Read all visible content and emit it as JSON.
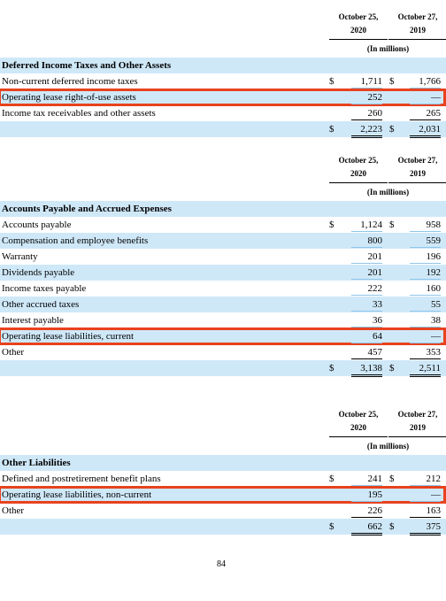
{
  "sections": [
    {
      "col1": {
        "line1": "October 25,",
        "line2": "2020"
      },
      "col2": {
        "line1": "October 27,",
        "line2": "2019"
      },
      "units": "(In millions)",
      "title": "Deferred Income Taxes and Other Assets",
      "rows": [
        {
          "label": "Non-current deferred income taxes",
          "cur1": "$",
          "v1": "1,711",
          "cur2": "$",
          "v2": "1,766"
        },
        {
          "label": "Operating lease right-of-use assets",
          "v1": "252",
          "v2": "—",
          "highlight": true
        },
        {
          "label": "Income tax receivables and other assets",
          "v1": "260",
          "v2": "265"
        }
      ],
      "total": {
        "cur1": "$",
        "v1": "2,223",
        "cur2": "$",
        "v2": "2,031"
      }
    },
    {
      "col1": {
        "line1": "October 25,",
        "line2": "2020"
      },
      "col2": {
        "line1": "October 27,",
        "line2": "2019"
      },
      "units": "(In millions)",
      "title": "Accounts Payable and Accrued Expenses",
      "rows": [
        {
          "label": "Accounts payable",
          "cur1": "$",
          "v1": "1,124",
          "cur2": "$",
          "v2": "958"
        },
        {
          "label": "Compensation and employee benefits",
          "v1": "800",
          "v2": "559"
        },
        {
          "label": "Warranty",
          "v1": "201",
          "v2": "196"
        },
        {
          "label": "Dividends payable",
          "v1": "201",
          "v2": "192"
        },
        {
          "label": "Income taxes payable",
          "v1": "222",
          "v2": "160"
        },
        {
          "label": "Other accrued taxes",
          "v1": "33",
          "v2": "55"
        },
        {
          "label": "Interest payable",
          "v1": "36",
          "v2": "38"
        },
        {
          "label": "Operating lease liabilities, current",
          "v1": "64",
          "v2": "—",
          "highlight": true
        },
        {
          "label": "Other",
          "v1": "457",
          "v2": "353"
        }
      ],
      "total": {
        "cur1": "$",
        "v1": "3,138",
        "cur2": "$",
        "v2": "2,511"
      }
    },
    {
      "col1": {
        "line1": "October 25,",
        "line2": "2020"
      },
      "col2": {
        "line1": "October 27,",
        "line2": "2019"
      },
      "units": "(In millions)",
      "title": "Other Liabilities",
      "rows": [
        {
          "label": "Defined and postretirement benefit plans",
          "cur1": "$",
          "v1": "241",
          "cur2": "$",
          "v2": "212"
        },
        {
          "label": "Operating lease liabilities, non-current",
          "v1": "195",
          "v2": "—",
          "highlight": true
        },
        {
          "label": "Other",
          "v1": "226",
          "v2": "163"
        }
      ],
      "total": {
        "cur1": "$",
        "v1": "662",
        "cur2": "$",
        "v2": "375"
      }
    }
  ],
  "page_number": "84"
}
